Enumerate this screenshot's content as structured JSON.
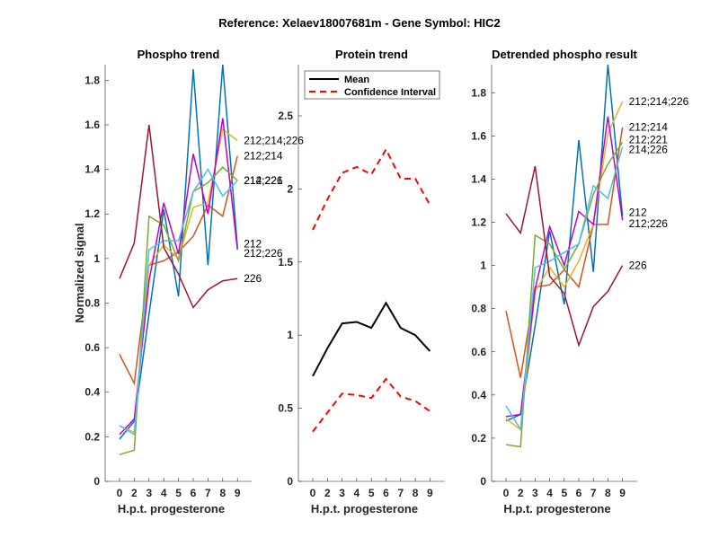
{
  "figure": {
    "suptitle": "Reference:  Xelaev18007681m - Gene Symbol:  HIC2"
  },
  "chart_data": [
    {
      "type": "line",
      "title": "Phospho trend",
      "xlabel": "H.p.t. progesterone",
      "ylabel": "Normalized signal",
      "categories": [
        "0",
        "2",
        "3",
        "4",
        "5",
        "6",
        "7",
        "8",
        "9"
      ],
      "ylim": [
        0,
        1.87
      ],
      "yticks": [
        "0",
        "0.2",
        "0.4",
        "0.6",
        "0.8",
        "1",
        "1.2",
        "1.4",
        "1.6",
        "1.8"
      ],
      "ytick_values": [
        0,
        0.2,
        0.4,
        0.6,
        0.8,
        1.0,
        1.2,
        1.4,
        1.6,
        1.8
      ],
      "grid": false,
      "series": [
        {
          "name": "212",
          "color": "#0072BD",
          "values": [
            0.19,
            0.27,
            0.75,
            1.22,
            0.83,
            1.85,
            0.97,
            1.87,
            1.05
          ]
        },
        {
          "name": "212;214",
          "color": "#D95319",
          "values": [
            0.57,
            0.44,
            0.97,
            0.99,
            1.03,
            1.1,
            1.24,
            1.19,
            1.46
          ]
        },
        {
          "name": "212;214;226",
          "color": "#EDB120",
          "values": [
            0.25,
            0.22,
            0.97,
            1.06,
            1.0,
            1.23,
            1.25,
            1.58,
            1.53
          ]
        },
        {
          "name": "212;226",
          "color": "#C000C8",
          "values": [
            0.21,
            0.28,
            0.9,
            1.25,
            1.02,
            1.47,
            1.2,
            1.63,
            1.04
          ]
        },
        {
          "name": "212;221",
          "color": "#77AC30",
          "values": [
            0.12,
            0.14,
            1.19,
            1.15,
            0.99,
            1.3,
            1.34,
            1.41,
            1.35
          ]
        },
        {
          "name": "214;226",
          "color": "#4DBEEE",
          "values": [
            0.25,
            0.21,
            1.04,
            1.08,
            1.08,
            1.3,
            1.4,
            1.28,
            1.35
          ]
        },
        {
          "name": "226",
          "color": "#A2142F",
          "values": [
            0.91,
            1.07,
            1.6,
            1.05,
            0.93,
            0.78,
            0.86,
            0.9,
            0.91
          ]
        }
      ]
    },
    {
      "type": "line",
      "title": "Protein trend",
      "xlabel": "H.p.t. progesterone",
      "ylabel": "",
      "categories": [
        "0",
        "2",
        "3",
        "4",
        "5",
        "6",
        "7",
        "8",
        "9"
      ],
      "ylim": [
        0,
        2.85
      ],
      "yticks": [
        "0",
        "0.5",
        "1",
        "1.5",
        "2",
        "2.5"
      ],
      "ytick_values": [
        0,
        0.5,
        1.0,
        1.5,
        2.0,
        2.5
      ],
      "grid": false,
      "legend": {
        "position": "top",
        "entries": [
          "Mean",
          "Confidence Interval"
        ]
      },
      "series": [
        {
          "name": "Mean",
          "color": "#000000",
          "style": "solid",
          "values": [
            0.72,
            0.91,
            1.08,
            1.09,
            1.05,
            1.22,
            1.05,
            1.0,
            0.89
          ]
        },
        {
          "name": "Confidence Interval (upper)",
          "color": "#FF0000",
          "style": "dashed",
          "values": [
            1.72,
            1.93,
            2.11,
            2.15,
            2.1,
            2.27,
            2.07,
            2.07,
            1.89
          ]
        },
        {
          "name": "Confidence Interval (lower)",
          "color": "#FF0000",
          "style": "dashed",
          "values": [
            0.34,
            0.47,
            0.6,
            0.59,
            0.57,
            0.7,
            0.58,
            0.55,
            0.48
          ]
        }
      ]
    },
    {
      "type": "line",
      "title": "Detrended phospho result",
      "xlabel": "H.p.t. progesterone",
      "ylabel": "",
      "categories": [
        "0",
        "2",
        "3",
        "4",
        "5",
        "6",
        "7",
        "8",
        "9"
      ],
      "ylim": [
        0,
        1.93
      ],
      "yticks": [
        "0",
        "0.2",
        "0.4",
        "0.6",
        "0.8",
        "1",
        "1.2",
        "1.4",
        "1.6",
        "1.8"
      ],
      "ytick_values": [
        0,
        0.2,
        0.4,
        0.6,
        0.8,
        1.0,
        1.2,
        1.4,
        1.6,
        1.8
      ],
      "grid": false,
      "series": [
        {
          "name": "212",
          "color": "#0072BD",
          "values": [
            0.28,
            0.31,
            0.72,
            1.16,
            0.82,
            1.58,
            0.97,
            1.93,
            1.23
          ]
        },
        {
          "name": "212;214",
          "color": "#D95319",
          "values": [
            0.79,
            0.48,
            0.9,
            0.91,
            0.98,
            0.9,
            1.19,
            1.19,
            1.64
          ]
        },
        {
          "name": "212;214;226",
          "color": "#EDB120",
          "values": [
            0.29,
            0.24,
            0.88,
            0.99,
            0.9,
            1.02,
            1.19,
            1.61,
            1.76
          ]
        },
        {
          "name": "212;226",
          "color": "#C000C8",
          "values": [
            0.3,
            0.31,
            0.89,
            1.18,
            1.0,
            1.25,
            1.19,
            1.69,
            1.21
          ]
        },
        {
          "name": "212;221",
          "color": "#77AC30",
          "values": [
            0.17,
            0.16,
            1.14,
            1.1,
            0.98,
            1.1,
            1.33,
            1.47,
            1.57
          ]
        },
        {
          "name": "214;226",
          "color": "#4DBEEE",
          "values": [
            0.35,
            0.24,
            0.99,
            1.02,
            1.06,
            1.1,
            1.37,
            1.31,
            1.55
          ]
        },
        {
          "name": "226",
          "color": "#A2142F",
          "values": [
            1.24,
            1.15,
            1.46,
            0.95,
            0.87,
            0.63,
            0.81,
            0.88,
            1.0
          ]
        }
      ]
    }
  ]
}
